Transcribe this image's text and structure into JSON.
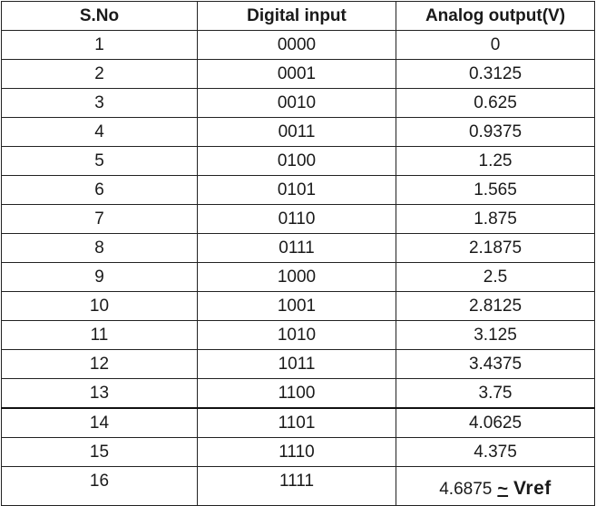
{
  "table": {
    "headers": [
      "S.No",
      "Digital input",
      "Analog output(V)"
    ],
    "rows": [
      [
        "1",
        "0000",
        "0"
      ],
      [
        "2",
        "0001",
        "0.3125"
      ],
      [
        "3",
        "0010",
        "0.625"
      ],
      [
        "4",
        "0011",
        "0.9375"
      ],
      [
        "5",
        "0100",
        "1.25"
      ],
      [
        "6",
        "0101",
        "1.565"
      ],
      [
        "7",
        "0110",
        "1.875"
      ],
      [
        "8",
        "0111",
        "2.1875"
      ],
      [
        "9",
        "1000",
        "2.5"
      ],
      [
        "10",
        "1001",
        "2.8125"
      ],
      [
        "11",
        "1010",
        "3.125"
      ],
      [
        "12",
        "1011",
        "3.4375"
      ],
      [
        "13",
        "1100",
        "3.75"
      ],
      [
        "14",
        "1101",
        "4.0625"
      ],
      [
        "15",
        "1110",
        "4.375"
      ]
    ],
    "last_row": {
      "sno": "16",
      "digital": "1111",
      "analog_value": "4.6875",
      "approx_symbol": "~",
      "ref_label": "Vref"
    }
  }
}
